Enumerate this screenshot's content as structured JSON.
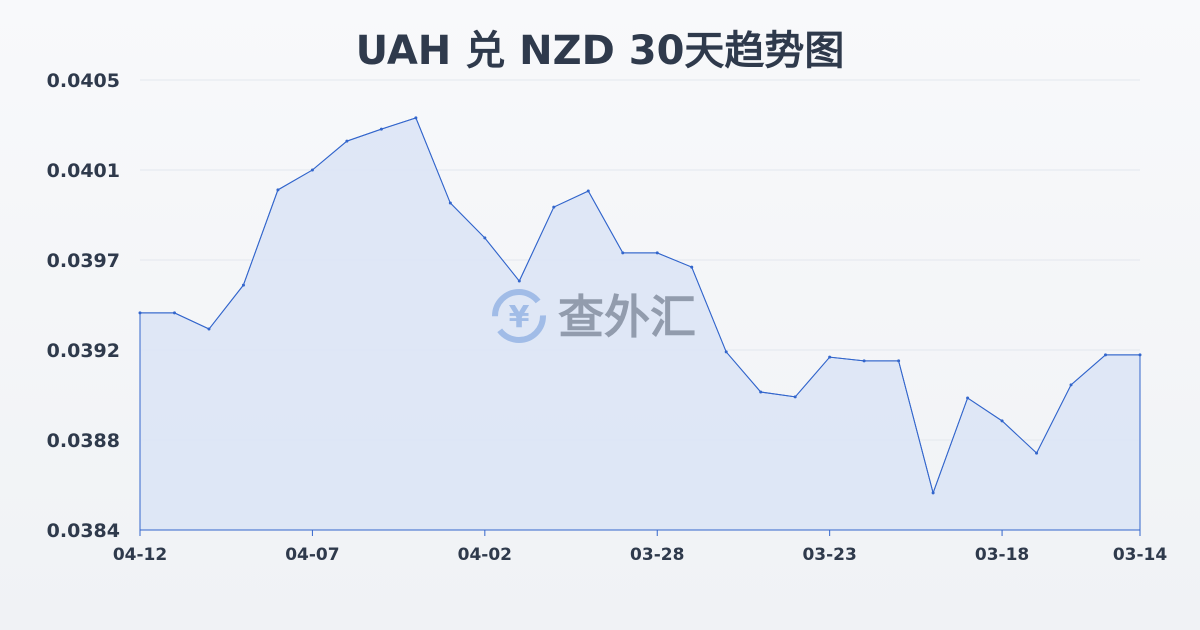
{
  "title": "UAH 兑 NZD 30天趋势图",
  "watermark": "查外汇",
  "colors": {
    "line": "#3366cc",
    "fill": "#dbe4f6",
    "grid": "#e3e7ee",
    "text": "#2f3a4c",
    "watermark": "#9bb8e6"
  },
  "chart_data": {
    "type": "area",
    "title": "UAH 兑 NZD 30天趋势图",
    "xlabel": "",
    "ylabel": "",
    "ylim": [
      0.0384,
      0.0405
    ],
    "yticks": [
      "0.0405",
      "0.0401",
      "0.0397",
      "0.0392",
      "0.0388",
      "0.0384"
    ],
    "xticks": [
      "04-12",
      "04-07",
      "04-02",
      "03-28",
      "03-23",
      "03-18",
      "03-14"
    ],
    "grid": true,
    "x": [
      "04-12",
      "04-11",
      "04-10",
      "04-09",
      "04-08",
      "04-07",
      "04-06",
      "04-05",
      "04-04",
      "04-03",
      "04-02",
      "04-01",
      "03-31",
      "03-30",
      "03-29",
      "03-28",
      "03-27",
      "03-26",
      "03-25",
      "03-24",
      "03-23",
      "03-22",
      "03-21",
      "03-20",
      "03-19",
      "03-18",
      "03-17",
      "03-16",
      "03-15",
      "03-14"
    ],
    "values": [
      0.039413,
      0.039413,
      0.039338,
      0.039543,
      0.039987,
      0.04008,
      0.040215,
      0.040271,
      0.040323,
      0.039926,
      0.039763,
      0.039562,
      0.039907,
      0.039982,
      0.039693,
      0.039693,
      0.039627,
      0.039231,
      0.039044,
      0.039021,
      0.039207,
      0.039189,
      0.039189,
      0.038573,
      0.039016,
      0.038909,
      0.038759,
      0.039077,
      0.039217,
      0.039217
    ]
  }
}
